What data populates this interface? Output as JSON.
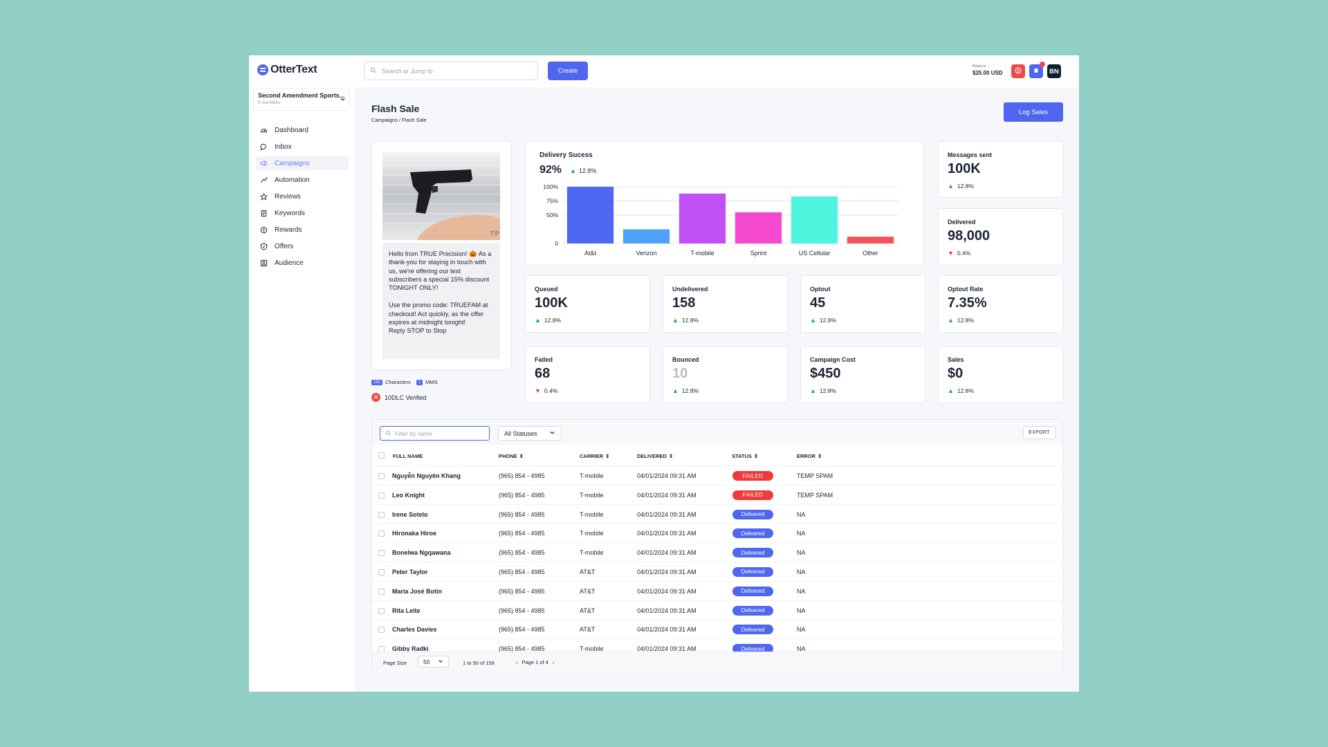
{
  "app": {
    "brand": "OtterText"
  },
  "org": {
    "name": "Second Amendment Sports...",
    "members": "5 members"
  },
  "sidebar": {
    "items": [
      {
        "label": "Dashboard",
        "icon": "dashboard-icon"
      },
      {
        "label": "Inbox",
        "icon": "chat-icon"
      },
      {
        "label": "Campaigns",
        "icon": "megaphone-icon"
      },
      {
        "label": "Automation",
        "icon": "automation-icon"
      },
      {
        "label": "Reviews",
        "icon": "star-icon"
      },
      {
        "label": "Keywords",
        "icon": "keyword-icon"
      },
      {
        "label": "Rewards",
        "icon": "rewards-icon"
      },
      {
        "label": "Offers",
        "icon": "offers-icon"
      },
      {
        "label": "Audience",
        "icon": "audience-icon"
      }
    ],
    "active": "Campaigns"
  },
  "topbar": {
    "search_placeholder": "Search or Jump to",
    "create_label": "Create",
    "balance_label": "Balance",
    "balance_value": "$25.00 USD",
    "avatar_initials": "BN"
  },
  "page": {
    "title": "Flash Sale",
    "breadcrumb": "Campaigns / Flash Sale",
    "log_sales_label": "Log Sales"
  },
  "preview": {
    "message": "Hello from TRUE Precision! 🎃 As a thank-you for staying in touch with us, we're offering our text subscribers a special 15% discount TONIGHT ONLY!\n\nUse the promo code: TRUEFAM at checkout! Act quickly, as the offer expires at midnight tonight!\nReply STOP to Stop",
    "image_watermark": "TP",
    "char_count": "162",
    "char_label": "Characters",
    "mms_count": "1",
    "mms_label": "MMS",
    "verified_label": "10DLC Verified"
  },
  "chart_data": {
    "type": "bar",
    "title": "Delivery Sucess",
    "headline": "92%",
    "delta": "12.8%",
    "categories": [
      "At&t",
      "Verizon",
      "T-mobile",
      "Sprint",
      "US Cellular",
      "Other"
    ],
    "values": [
      100,
      25,
      88,
      55,
      83,
      12
    ],
    "colors": [
      "#4f66f0",
      "#4ea2f7",
      "#c04ff5",
      "#f54ad0",
      "#4ff5df",
      "#f5525a"
    ],
    "yticks": [
      "0",
      "50%",
      "75%",
      "100%"
    ],
    "ylim": [
      0,
      100
    ],
    "grid": true
  },
  "stats": {
    "messages_sent": {
      "label": "Messages sent",
      "value": "100K",
      "delta": "12.8%",
      "dir": "up"
    },
    "delivered": {
      "label": "Delivered",
      "value": "98,000",
      "delta": "0.4%",
      "dir": "down"
    },
    "queued": {
      "label": "Queued",
      "value": "100K",
      "delta": "12.8%",
      "dir": "up"
    },
    "undelivered": {
      "label": "Undelivered",
      "value": "158",
      "delta": "12.8%",
      "dir": "up"
    },
    "optout": {
      "label": "Optout",
      "value": "45",
      "delta": "12.8%",
      "dir": "up"
    },
    "optout_rate": {
      "label": "Optout Rate",
      "value": "7.35%",
      "delta": "12.8%",
      "dir": "up"
    },
    "failed": {
      "label": "Failed",
      "value": "68",
      "delta": "0.4%",
      "dir": "down"
    },
    "bounced": {
      "label": "Bounced",
      "value": "10",
      "delta": "12.8%",
      "dir": "up"
    },
    "campaign_cost": {
      "label": "Campaign Cost",
      "value": "$450",
      "delta": "12.8%",
      "dir": "up"
    },
    "sales": {
      "label": "Sales",
      "value": "$0",
      "delta": "12.8%",
      "dir": "up"
    }
  },
  "table": {
    "filter_placeholder": "Filter by name",
    "status_filter": "All Statuses",
    "export_label": "EXPORT",
    "columns": {
      "name": "FULL NAME",
      "phone": "PHONE",
      "carrier": "CARRIER",
      "delivered": "DELIVERED",
      "status": "STATUS",
      "error": "ERROR"
    },
    "rows": [
      {
        "name": "Nguyễn Nguyên Khang",
        "phone": "(965) 854 - 4985",
        "carrier": "T-mobile",
        "delivered": "04/01/2024 09:31 AM",
        "status": "FAILED",
        "error": "TEMP SPAM"
      },
      {
        "name": "Leo Knight",
        "phone": "(965) 854 - 4985",
        "carrier": "T-mobile",
        "delivered": "04/01/2024 09:31 AM",
        "status": "FAILED",
        "error": "TEMP SPAM"
      },
      {
        "name": "Irene Sotelo",
        "phone": "(965) 854 - 4985",
        "carrier": "T-mobile",
        "delivered": "04/01/2024 09:31 AM",
        "status": "Delivered",
        "error": "NA"
      },
      {
        "name": "Hironaka Hiroe",
        "phone": "(965) 854 - 4985",
        "carrier": "T-mobile",
        "delivered": "04/01/2024 09:31 AM",
        "status": "Delivered",
        "error": "NA"
      },
      {
        "name": "Bonelwa Ngqawana",
        "phone": "(965) 854 - 4985",
        "carrier": "T-mobile",
        "delivered": "04/01/2024 09:31 AM",
        "status": "Delivered",
        "error": "NA"
      },
      {
        "name": "Peter Taylor",
        "phone": "(965) 854 - 4985",
        "carrier": "AT&T",
        "delivered": "04/01/2024 09:31 AM",
        "status": "Delivered",
        "error": "NA"
      },
      {
        "name": "Maria José Botín",
        "phone": "(965) 854 - 4985",
        "carrier": "AT&T",
        "delivered": "04/01/2024 09:31 AM",
        "status": "Delivered",
        "error": "NA"
      },
      {
        "name": "Rita Leite",
        "phone": "(965) 854 - 4985",
        "carrier": "AT&T",
        "delivered": "04/01/2024 09:31 AM",
        "status": "Delivered",
        "error": "NA"
      },
      {
        "name": "Charles Davies",
        "phone": "(965) 854 - 4985",
        "carrier": "AT&T",
        "delivered": "04/01/2024 09:31 AM",
        "status": "Delivered",
        "error": "NA"
      },
      {
        "name": "Gibby Radki",
        "phone": "(965) 854 - 4985",
        "carrier": "T-mobile",
        "delivered": "04/01/2024 09:31 AM",
        "status": "Delivered",
        "error": "NA"
      }
    ],
    "footer": {
      "page_size_label": "Page Size",
      "page_size": "50",
      "range": "1 to 50 of 158",
      "page_text": "Page 1 of 4"
    }
  },
  "colors": {
    "accent": "#4f66f0",
    "danger": "#ef3a3a",
    "success": "#21a55b"
  }
}
